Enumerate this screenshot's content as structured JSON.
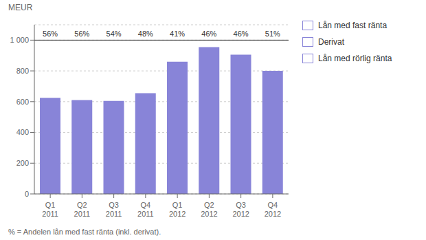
{
  "chart_data": {
    "type": "bar",
    "categories": [
      "Q1\n2011",
      "Q2\n2011",
      "Q3\n2011",
      "Q4\n2011",
      "Q1\n2012",
      "Q2\n2012",
      "Q3\n2012",
      "Q4\n2012"
    ],
    "values": [
      625,
      610,
      605,
      655,
      860,
      955,
      905,
      800
    ],
    "color": "#8884d8",
    "ylabel": "MEUR",
    "ylim": [
      0,
      1100
    ],
    "yticks": [
      0,
      200,
      400,
      600,
      800,
      {
        "value": 1000,
        "label": "1 000"
      }
    ],
    "grid": true,
    "annotations": [
      {
        "x": "Q1\n2011",
        "y": 1000,
        "text": "56%"
      },
      {
        "x": "Q2\n2011",
        "y": 1000,
        "text": "56%"
      },
      {
        "x": "Q3\n2011",
        "y": 1000,
        "text": "54%"
      },
      {
        "x": "Q4\n2011",
        "y": 1000,
        "text": "48%"
      },
      {
        "x": "Q1\n2012",
        "y": 1000,
        "text": "41%"
      },
      {
        "x": "Q2\n2012",
        "y": 1000,
        "text": "46%"
      },
      {
        "x": "Q3\n2012",
        "y": 1000,
        "text": "46%"
      },
      {
        "x": "Q4\n2012",
        "y": 1000,
        "text": "51%"
      }
    ],
    "legend": "right",
    "legend_labels": [
      "Lån med fast ränta",
      "Derivat",
      "Lån med rörlig ränta"
    ],
    "footnote": "% = Andelen lån med fast ränta (inkl. derivat)."
  }
}
